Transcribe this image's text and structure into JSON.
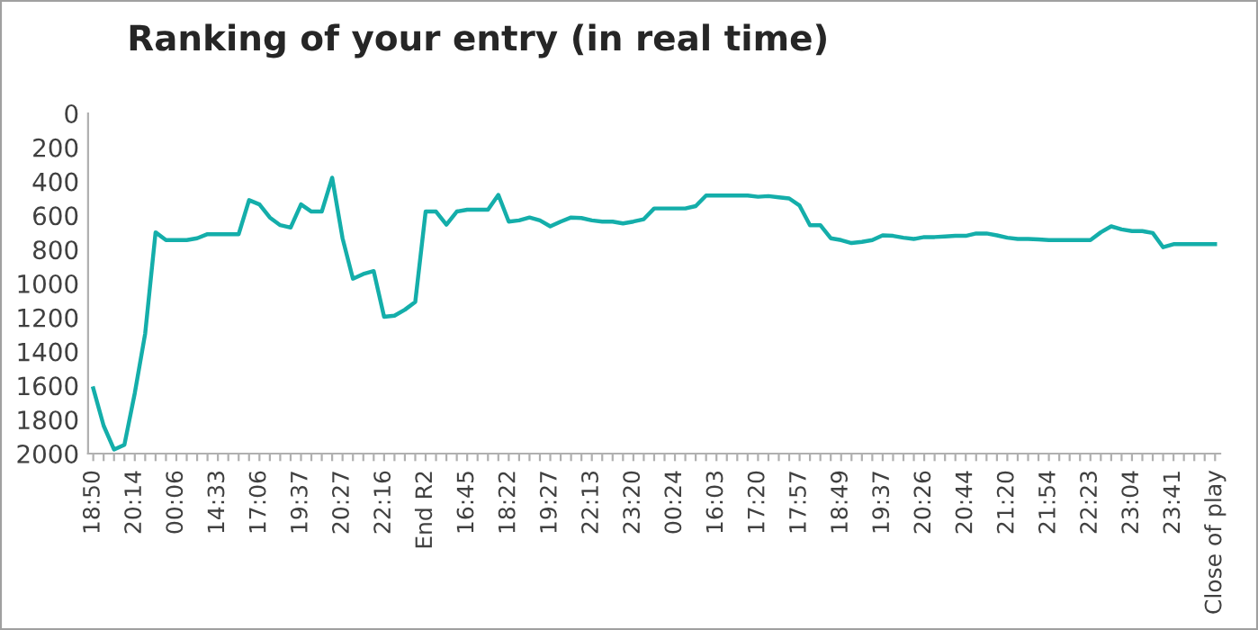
{
  "chart_data": {
    "type": "line",
    "title": "Ranking of your entry (in real time)",
    "categories": [
      "18:50",
      null,
      null,
      null,
      "20:14",
      null,
      null,
      null,
      "00:06",
      null,
      null,
      null,
      "14:33",
      null,
      null,
      null,
      "17:06",
      null,
      null,
      null,
      "19:37",
      null,
      null,
      null,
      "20:27",
      null,
      null,
      null,
      "22:16",
      null,
      null,
      null,
      "End R2",
      null,
      null,
      null,
      "16:45",
      null,
      null,
      null,
      "18:22",
      null,
      null,
      null,
      "19:27",
      null,
      null,
      null,
      "22:13",
      null,
      null,
      null,
      "23:20",
      null,
      null,
      null,
      "00:24",
      null,
      null,
      null,
      "16:03",
      null,
      null,
      null,
      "17:20",
      null,
      null,
      null,
      "17:57",
      null,
      null,
      null,
      "18:49",
      null,
      null,
      null,
      "19:37",
      null,
      null,
      null,
      "20:26",
      null,
      null,
      null,
      "20:44",
      null,
      null,
      null,
      "21:20",
      null,
      null,
      null,
      "21:54",
      null,
      null,
      null,
      "22:23",
      null,
      null,
      null,
      "23:04",
      null,
      null,
      null,
      "23:41",
      null,
      null,
      null,
      "Close of play"
    ],
    "series": [
      {
        "color": "#14aeaa",
        "values": [
          1616,
          1836,
          1976,
          1948,
          1644,
          1294,
          699,
          745,
          745,
          745,
          734,
          710,
          710,
          710,
          710,
          510,
          535,
          612,
          657,
          671,
          535,
          577,
          577,
          378,
          734,
          972,
          944,
          927,
          1196,
          1189,
          1154,
          1108,
          577,
          577,
          654,
          577,
          566,
          566,
          566,
          479,
          636,
          629,
          612,
          629,
          664,
          636,
          612,
          615,
          629,
          636,
          636,
          647,
          636,
          622,
          559,
          559,
          559,
          559,
          545,
          483,
          483,
          483,
          483,
          483,
          490,
          486,
          493,
          500,
          542,
          657,
          657,
          734,
          745,
          762,
          755,
          745,
          717,
          720,
          731,
          738,
          727,
          727,
          724,
          720,
          720,
          706,
          706,
          717,
          731,
          738,
          738,
          741,
          745,
          745,
          745,
          745,
          745,
          699,
          664,
          682,
          692,
          692,
          703,
          787,
          769,
          769,
          769,
          769,
          769
        ]
      }
    ],
    "ylim": [
      2000,
      0
    ],
    "yticks": [
      0,
      200,
      400,
      600,
      800,
      1000,
      1200,
      1400,
      1600,
      1800,
      2000
    ],
    "grid": false,
    "legend": false,
    "marker": "none",
    "line_style": "solid"
  }
}
